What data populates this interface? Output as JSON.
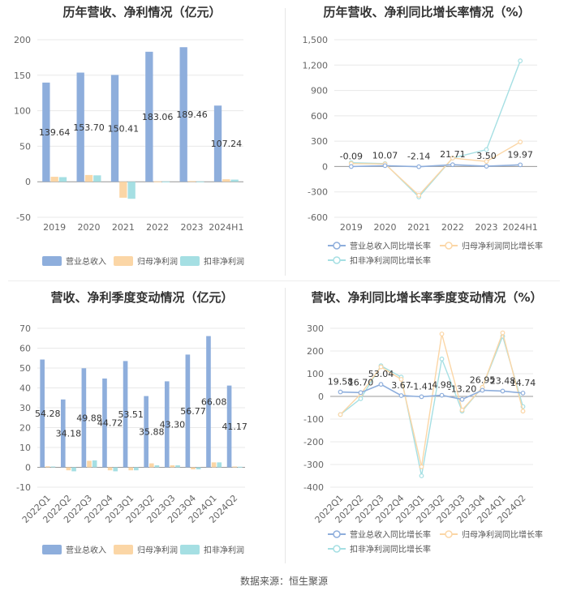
{
  "source_label": "数据来源：恒生聚源",
  "colors": {
    "revenue": "#8eaedc",
    "net_profit": "#fbd6a6",
    "deducted": "#a5dfe3",
    "grid": "#e8e8e8",
    "axis": "#666666"
  },
  "chart_data": [
    {
      "type": "bar",
      "title": "历年营收、净利情况（亿元）",
      "categories": [
        "2019",
        "2020",
        "2021",
        "2022",
        "2023",
        "2024H1"
      ],
      "ylim": [
        -50,
        200
      ],
      "yticks": [
        -50,
        0,
        50,
        100,
        150,
        200
      ],
      "series": [
        {
          "name": "营业总收入",
          "values": [
            139.64,
            153.7,
            150.41,
            183.06,
            189.46,
            107.24
          ],
          "labels": [
            "139.64",
            "153.70",
            "150.41",
            "183.06",
            "189.46",
            "107.24"
          ]
        },
        {
          "name": "归母净利润",
          "values": [
            7.0,
            9.5,
            -22.5,
            0.5,
            1.0,
            3.5
          ]
        },
        {
          "name": "扣非净利润",
          "values": [
            6.5,
            9.0,
            -24.0,
            0.3,
            0.4,
            3.0
          ]
        }
      ],
      "legend": "bottom"
    },
    {
      "type": "line",
      "title": "历年营收、净利同比增长率情况（%）",
      "categories": [
        "2019",
        "2020",
        "2021",
        "2022",
        "2023",
        "2024H1"
      ],
      "ylim": [
        -600,
        1500
      ],
      "yticks": [
        -600,
        -300,
        0,
        300,
        600,
        900,
        1200,
        1500
      ],
      "ytick_labels": [
        "-600",
        "-300",
        "0",
        "300",
        "600",
        "900",
        "1,200",
        "1,500"
      ],
      "series": [
        {
          "name": "营业总收入同比增长率",
          "values": [
            -0.09,
            10.07,
            -2.14,
            21.71,
            3.5,
            19.97
          ],
          "labels": [
            "-0.09",
            "10.07",
            "-2.14",
            "21.71",
            "3.50",
            "19.97"
          ]
        },
        {
          "name": "归母净利润同比增长率",
          "values": [
            35,
            30,
            -340,
            100,
            60,
            290
          ]
        },
        {
          "name": "扣非净利润同比增长率",
          "values": [
            45,
            35,
            -360,
            100,
            200,
            1250
          ]
        }
      ],
      "legend": "bottom"
    },
    {
      "type": "bar",
      "title": "营收、净利季度变动情况（亿元）",
      "categories": [
        "2022Q1",
        "2022Q2",
        "2022Q3",
        "2022Q4",
        "2023Q1",
        "2023Q2",
        "2023Q3",
        "2023Q4",
        "2024Q1",
        "2024Q2"
      ],
      "ylim": [
        -10,
        70
      ],
      "yticks": [
        -10,
        0,
        10,
        20,
        30,
        40,
        50,
        60,
        70
      ],
      "series": [
        {
          "name": "营业总收入",
          "values": [
            54.28,
            34.18,
            49.88,
            44.72,
            53.51,
            35.88,
            43.3,
            56.77,
            66.08,
            41.17
          ],
          "labels": [
            "54.28",
            "34.18",
            "49.88",
            "44.72",
            "53.51",
            "35.88",
            "43.30",
            "56.77",
            "66.08",
            "41.17"
          ]
        },
        {
          "name": "归母净利润",
          "values": [
            0.5,
            -1.5,
            3.3,
            -1.5,
            -1.5,
            2.0,
            1.0,
            -1.0,
            2.5,
            0.4
          ]
        },
        {
          "name": "扣非净利润",
          "values": [
            0.4,
            -2.0,
            3.5,
            -2.0,
            -1.5,
            1.0,
            1.0,
            -1.0,
            2.5,
            0.3
          ]
        }
      ],
      "legend": "bottom"
    },
    {
      "type": "line",
      "title": "营收、净利同比增长率季度变动情况（%）",
      "categories": [
        "2022Q1",
        "2022Q2",
        "2022Q3",
        "2022Q4",
        "2023Q1",
        "2023Q2",
        "2023Q3",
        "2023Q4",
        "2024Q1",
        "2024Q2"
      ],
      "ylim": [
        -400,
        300
      ],
      "yticks": [
        -400,
        -300,
        -200,
        -100,
        0,
        100,
        200,
        300
      ],
      "series": [
        {
          "name": "营业总收入同比增长率",
          "values": [
            19.58,
            16.7,
            53.04,
            3.67,
            -1.41,
            4.98,
            -13.2,
            26.95,
            23.48,
            14.74
          ],
          "labels": [
            "19.58",
            "16.70",
            "53.04",
            "3.67",
            "-1.41",
            "4.98",
            "-13.20",
            "26.95",
            "23.48",
            "14.74"
          ]
        },
        {
          "name": "归母净利润同比增长率",
          "values": [
            -80,
            10,
            130,
            75,
            -310,
            275,
            -60,
            40,
            280,
            -65
          ]
        },
        {
          "name": "扣非净利润同比增长率",
          "values": [
            -80,
            -10,
            135,
            85,
            -350,
            165,
            -65,
            40,
            265,
            -45
          ]
        }
      ],
      "legend": "bottom"
    }
  ]
}
